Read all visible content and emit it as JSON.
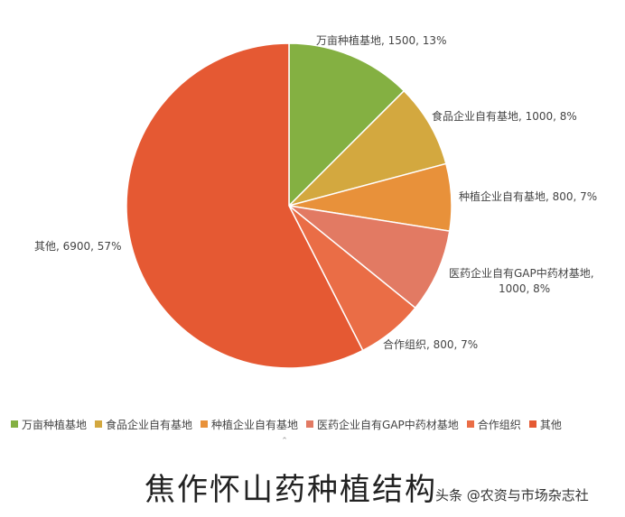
{
  "chart_data": {
    "type": "pie",
    "title": "",
    "series": [
      {
        "name": "万亩种植基地",
        "value": 1500,
        "percent": "13%",
        "color": "#84b042"
      },
      {
        "name": "食品企业自有基地",
        "value": 1000,
        "percent": "8%",
        "color": "#d3a83f"
      },
      {
        "name": "种植企业自有基地",
        "value": 800,
        "percent": "7%",
        "color": "#e8913a"
      },
      {
        "name": "医药企业自有GAP中药材基地",
        "value": 1000,
        "percent": "8%",
        "color": "#e27a63"
      },
      {
        "name": "合作组织",
        "value": 800,
        "percent": "7%",
        "color": "#ea6d46"
      },
      {
        "name": "其他",
        "value": 6900,
        "percent": "57%",
        "color": "#e55933"
      }
    ],
    "legend_position": "bottom"
  },
  "labels": [
    {
      "line1": "万亩种植基地, 1500, 13%",
      "line2": ""
    },
    {
      "line1": "食品企业自有基地, 1000, 8%",
      "line2": ""
    },
    {
      "line1": "种植企业自有基地, 800, 7%",
      "line2": ""
    },
    {
      "line1": "医药企业自有GAP中药材基地,",
      "line2": "1000, 8%"
    },
    {
      "line1": "合作组织, 800, 7%",
      "line2": ""
    },
    {
      "line1": "其他, 6900, 57%",
      "line2": ""
    }
  ],
  "caption": "焦作怀山药种植结构",
  "watermark": "头条 @农资与市场杂志社"
}
